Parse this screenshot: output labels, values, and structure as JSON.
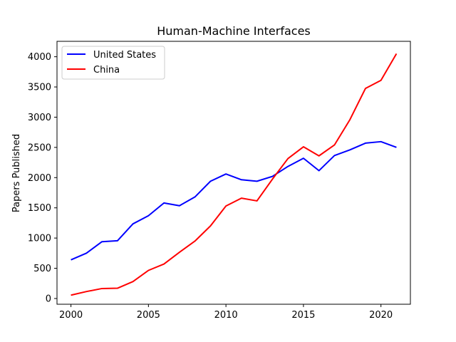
{
  "chart_data": {
    "type": "line",
    "title": "Human-Machine Interfaces",
    "xlabel": "",
    "ylabel": "Papers Published",
    "xlim": [
      1999.1,
      2021.9
    ],
    "ylim": [
      -95,
      4255
    ],
    "xticks": [
      2000,
      2005,
      2010,
      2015,
      2020
    ],
    "yticks": [
      0,
      500,
      1000,
      1500,
      2000,
      2500,
      3000,
      3500,
      4000
    ],
    "grid": false,
    "legend_position": "top-left",
    "x": [
      2000,
      2001,
      2002,
      2003,
      2004,
      2005,
      2006,
      2007,
      2008,
      2009,
      2010,
      2011,
      2012,
      2013,
      2014,
      2015,
      2016,
      2017,
      2018,
      2019,
      2020,
      2021
    ],
    "series": [
      {
        "name": "United States",
        "color": "#0000ff",
        "values": [
          640,
          750,
          940,
          955,
          1235,
          1370,
          1580,
          1535,
          1680,
          1940,
          2060,
          1965,
          1940,
          2020,
          2185,
          2320,
          2115,
          2365,
          2460,
          2570,
          2595,
          2500
        ]
      },
      {
        "name": "China",
        "color": "#ff0000",
        "values": [
          55,
          115,
          165,
          170,
          280,
          465,
          570,
          765,
          950,
          1200,
          1530,
          1660,
          1615,
          1975,
          2315,
          2510,
          2360,
          2540,
          2960,
          3475,
          3610,
          4050
        ]
      }
    ]
  }
}
